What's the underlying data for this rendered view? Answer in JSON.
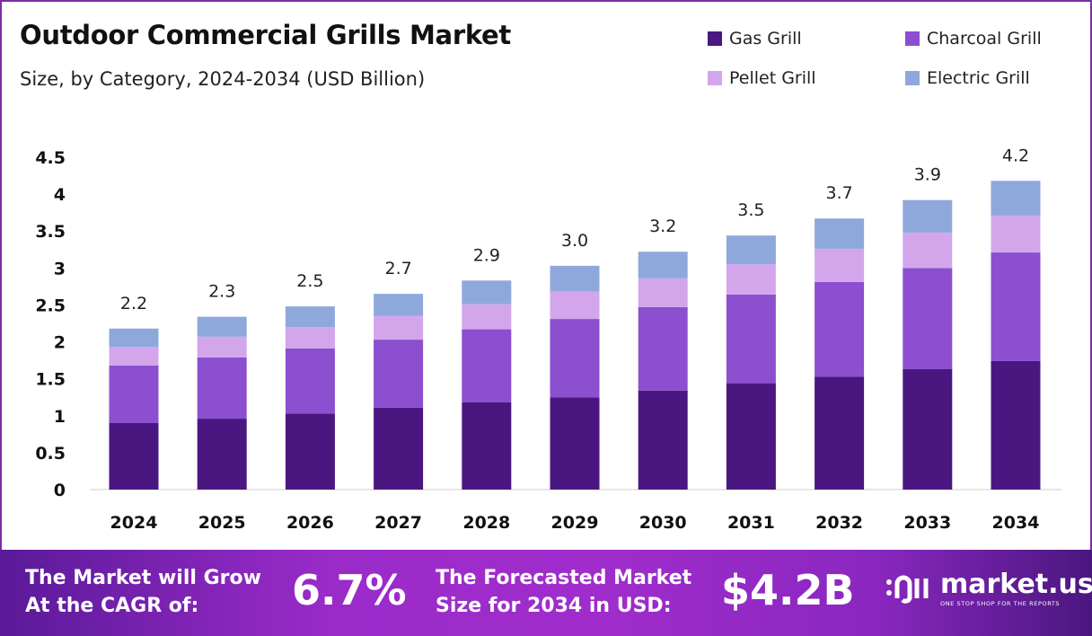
{
  "chart_data": {
    "type": "bar",
    "stacked": true,
    "title": "Outdoor Commercial Grills Market",
    "subtitle": "Size, by Category, 2024-2034 (USD Billion)",
    "categories": [
      "2024",
      "2025",
      "2026",
      "2027",
      "2028",
      "2029",
      "2030",
      "2031",
      "2032",
      "2033",
      "2034"
    ],
    "series": [
      {
        "name": "Gas Grill",
        "color": "#4a1780",
        "values": [
          0.9,
          0.96,
          1.03,
          1.11,
          1.18,
          1.25,
          1.34,
          1.44,
          1.53,
          1.63,
          1.74
        ]
      },
      {
        "name": "Charcoal Grill",
        "color": "#8b4fcf",
        "values": [
          0.78,
          0.83,
          0.88,
          0.92,
          0.99,
          1.06,
          1.13,
          1.2,
          1.28,
          1.37,
          1.47
        ]
      },
      {
        "name": "Pellet Grill",
        "color": "#d3a6ec",
        "values": [
          0.25,
          0.28,
          0.29,
          0.32,
          0.34,
          0.37,
          0.39,
          0.41,
          0.45,
          0.48,
          0.5
        ]
      },
      {
        "name": "Electric Grill",
        "color": "#8fa8dc",
        "values": [
          0.25,
          0.27,
          0.28,
          0.3,
          0.32,
          0.35,
          0.36,
          0.39,
          0.41,
          0.44,
          0.47
        ]
      }
    ],
    "totals": [
      "2.2",
      "2.3",
      "2.5",
      "2.7",
      "2.9",
      "3.0",
      "3.2",
      "3.5",
      "3.7",
      "3.9",
      "4.2"
    ],
    "yticks": [
      "0",
      "0.5",
      "1",
      "1.5",
      "2",
      "2.5",
      "3",
      "3.5",
      "4",
      "4.5"
    ],
    "ylim": [
      0,
      4.5
    ],
    "grid": false,
    "legend": "top-right"
  },
  "footer": {
    "cagr_text_1": "The Market will Grow",
    "cagr_text_2": "At the CAGR of:",
    "cagr_value": "6.7%",
    "forecast_text_1": "The Forecasted Market",
    "forecast_text_2": "Size for 2034 in USD:",
    "forecast_value": "$4.2B",
    "logo_name": "market.us",
    "logo_tagline": "ONE STOP SHOP FOR THE REPORTS"
  }
}
